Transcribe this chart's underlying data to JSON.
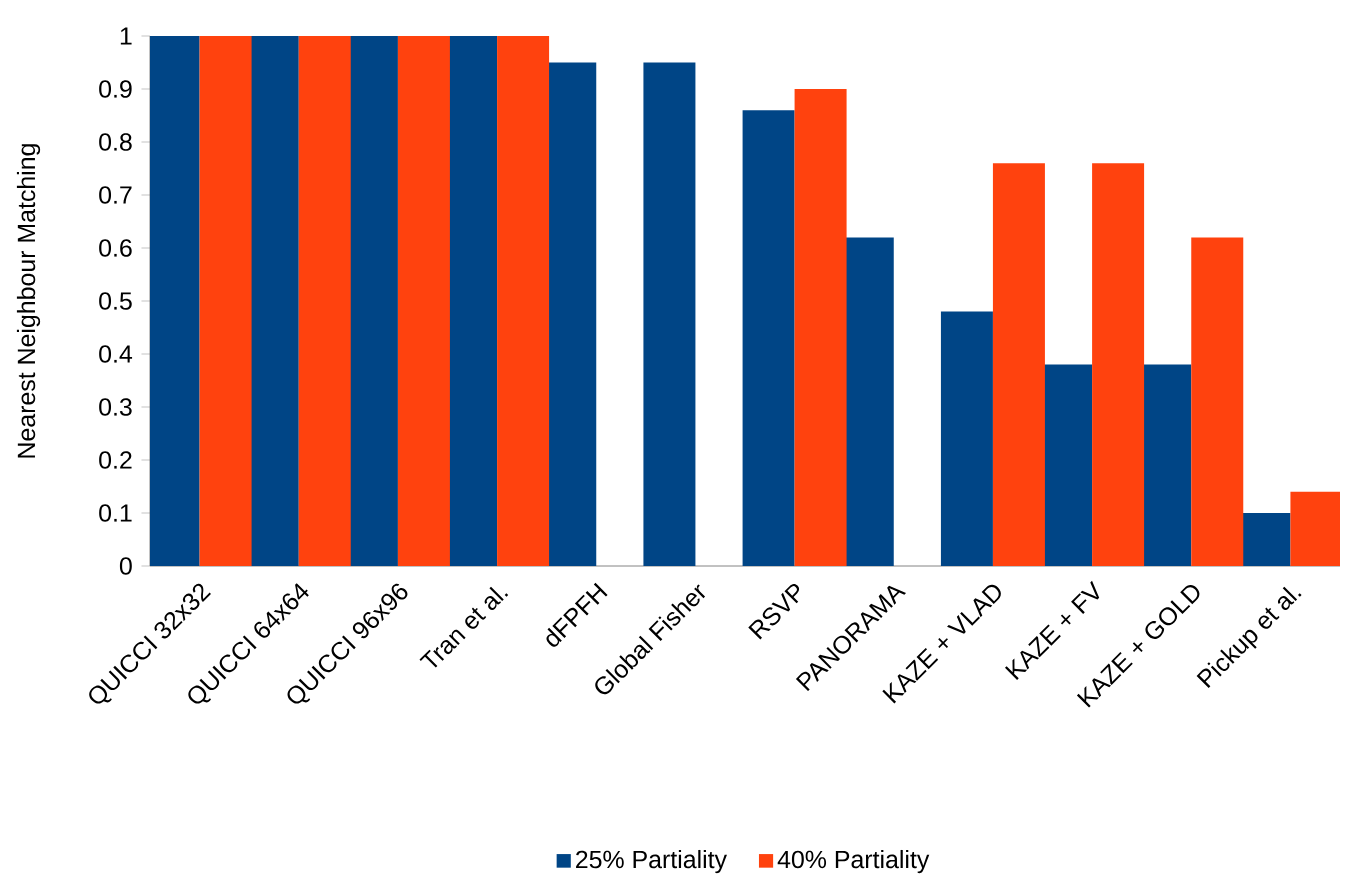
{
  "chart_data": {
    "type": "bar",
    "ylabel": "Nearest Neighbour Matching",
    "categories": [
      "QUICCI 32x32",
      "QUICCI 64x64",
      "QUICCI 96x96",
      "Tran et al.",
      "dFPFH",
      "Global Fisher",
      "RSVP",
      "PANORAMA",
      "KAZE + VLAD",
      "KAZE + FV",
      "KAZE + GOLD",
      "Pickup et al."
    ],
    "series": [
      {
        "name": "25% Partiality",
        "color": "#004586",
        "values": [
          1,
          1,
          1,
          1,
          0.95,
          0.95,
          0.86,
          0.62,
          0.48,
          0.38,
          0.38,
          0.1
        ]
      },
      {
        "name": "40% Partiality",
        "color": "#ff420e",
        "values": [
          1,
          1,
          1,
          1,
          null,
          null,
          0.9,
          null,
          0.76,
          0.76,
          0.62,
          0.14
        ]
      }
    ],
    "ylim": [
      0,
      1
    ],
    "yticks": [
      0,
      0.1,
      0.2,
      0.3,
      0.4,
      0.5,
      0.6,
      0.7,
      0.8,
      0.9,
      1
    ],
    "grid": false,
    "legend": "bottom"
  }
}
